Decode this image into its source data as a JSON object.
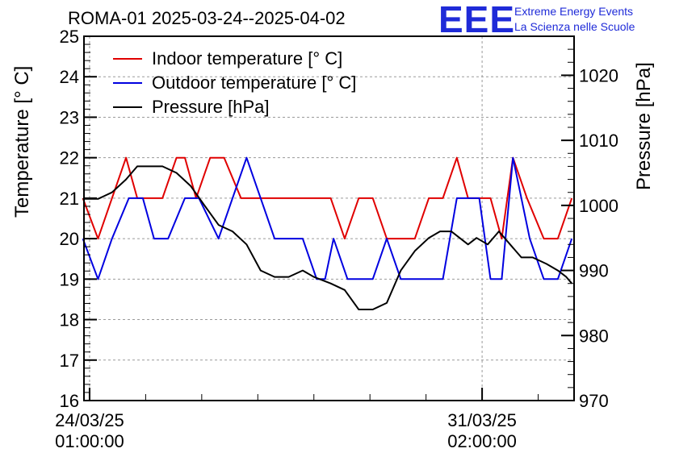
{
  "chart_data": {
    "type": "line",
    "title": "ROMA-01 2025-03-24--2025-04-02",
    "logo": {
      "mark": "EEE",
      "line1": "Extreme Energy Events",
      "line2": "La Scienza nelle Scuole"
    },
    "ylabel_left": "Temperature [° C]",
    "ylabel_right": "Pressure [hPa]",
    "ylim_left": [
      16,
      25
    ],
    "ylim_right": [
      970,
      1026
    ],
    "yticks_left": [
      16,
      17,
      18,
      19,
      20,
      21,
      22,
      23,
      24,
      25
    ],
    "yticks_right": [
      970,
      980,
      990,
      1000,
      1010,
      1020
    ],
    "xlim": [
      -0.1,
      8.64
    ],
    "xticks": [
      {
        "x": 0,
        "date": "24/03/25",
        "time": "01:00:00"
      },
      {
        "x": 7,
        "date": "31/03/25",
        "time": "02:00:00"
      }
    ],
    "grid": true,
    "legend_position": "top-left",
    "series": [
      {
        "name": "Indoor temperature [° C]",
        "color": "#e00000",
        "axis": "left",
        "x": [
          -0.12,
          0.15,
          0.4,
          0.65,
          0.85,
          1.1,
          1.3,
          1.55,
          1.7,
          1.9,
          2.15,
          2.4,
          2.7,
          3.05,
          3.3,
          3.6,
          3.8,
          4.05,
          4.3,
          4.55,
          4.8,
          5.05,
          5.3,
          5.55,
          5.8,
          6.05,
          6.3,
          6.55,
          6.75,
          6.95,
          7.15,
          7.35,
          7.55,
          7.8,
          8.1,
          8.35,
          8.6
        ],
        "y": [
          21,
          20,
          21,
          22,
          21,
          21,
          21,
          22,
          22,
          21,
          22,
          22,
          21,
          21,
          21,
          21,
          21,
          21,
          21,
          20,
          21,
          21,
          20,
          20,
          20,
          21,
          21,
          22,
          21,
          21,
          21,
          20,
          22,
          21,
          20,
          20,
          21
        ]
      },
      {
        "name": "Outdoor temperature [° C]",
        "color": "#0000e0",
        "axis": "left",
        "x": [
          -0.12,
          0.15,
          0.4,
          0.7,
          0.95,
          1.15,
          1.4,
          1.7,
          1.95,
          2.3,
          2.55,
          2.8,
          3.05,
          3.3,
          3.55,
          3.8,
          4.05,
          4.2,
          4.35,
          4.6,
          4.85,
          5.05,
          5.3,
          5.55,
          5.8,
          6.05,
          6.3,
          6.55,
          6.75,
          6.95,
          7.15,
          7.35,
          7.55,
          7.85,
          8.1,
          8.35,
          8.6
        ],
        "y": [
          20,
          19,
          20,
          21,
          21,
          20,
          20,
          21,
          21,
          20,
          21,
          22,
          21,
          20,
          20,
          20,
          19,
          19,
          20,
          19,
          19,
          19,
          20,
          19,
          19,
          19,
          19,
          21,
          21,
          21,
          19,
          19,
          22,
          20,
          19,
          19,
          20
        ]
      },
      {
        "name": "Pressure [hPa]",
        "color": "#000000",
        "axis": "right",
        "x": [
          -0.12,
          0.15,
          0.4,
          0.65,
          0.85,
          1.1,
          1.3,
          1.55,
          1.8,
          2.05,
          2.3,
          2.55,
          2.8,
          3.05,
          3.3,
          3.55,
          3.8,
          4.0,
          4.3,
          4.55,
          4.8,
          5.05,
          5.3,
          5.55,
          5.8,
          6.05,
          6.25,
          6.45,
          6.6,
          6.75,
          6.9,
          7.1,
          7.3,
          7.5,
          7.7,
          7.9,
          8.15,
          8.35,
          8.5,
          8.6
        ],
        "y": [
          1001,
          1001,
          1002,
          1004,
          1006,
          1006,
          1006,
          1005,
          1003,
          1000,
          997,
          996,
          994,
          990,
          989,
          989,
          990,
          989,
          988,
          987,
          984,
          984,
          985,
          990,
          993,
          995,
          996,
          996,
          995,
          994,
          995,
          994,
          996,
          994,
          992,
          992,
          991,
          990,
          989,
          988
        ]
      }
    ]
  }
}
